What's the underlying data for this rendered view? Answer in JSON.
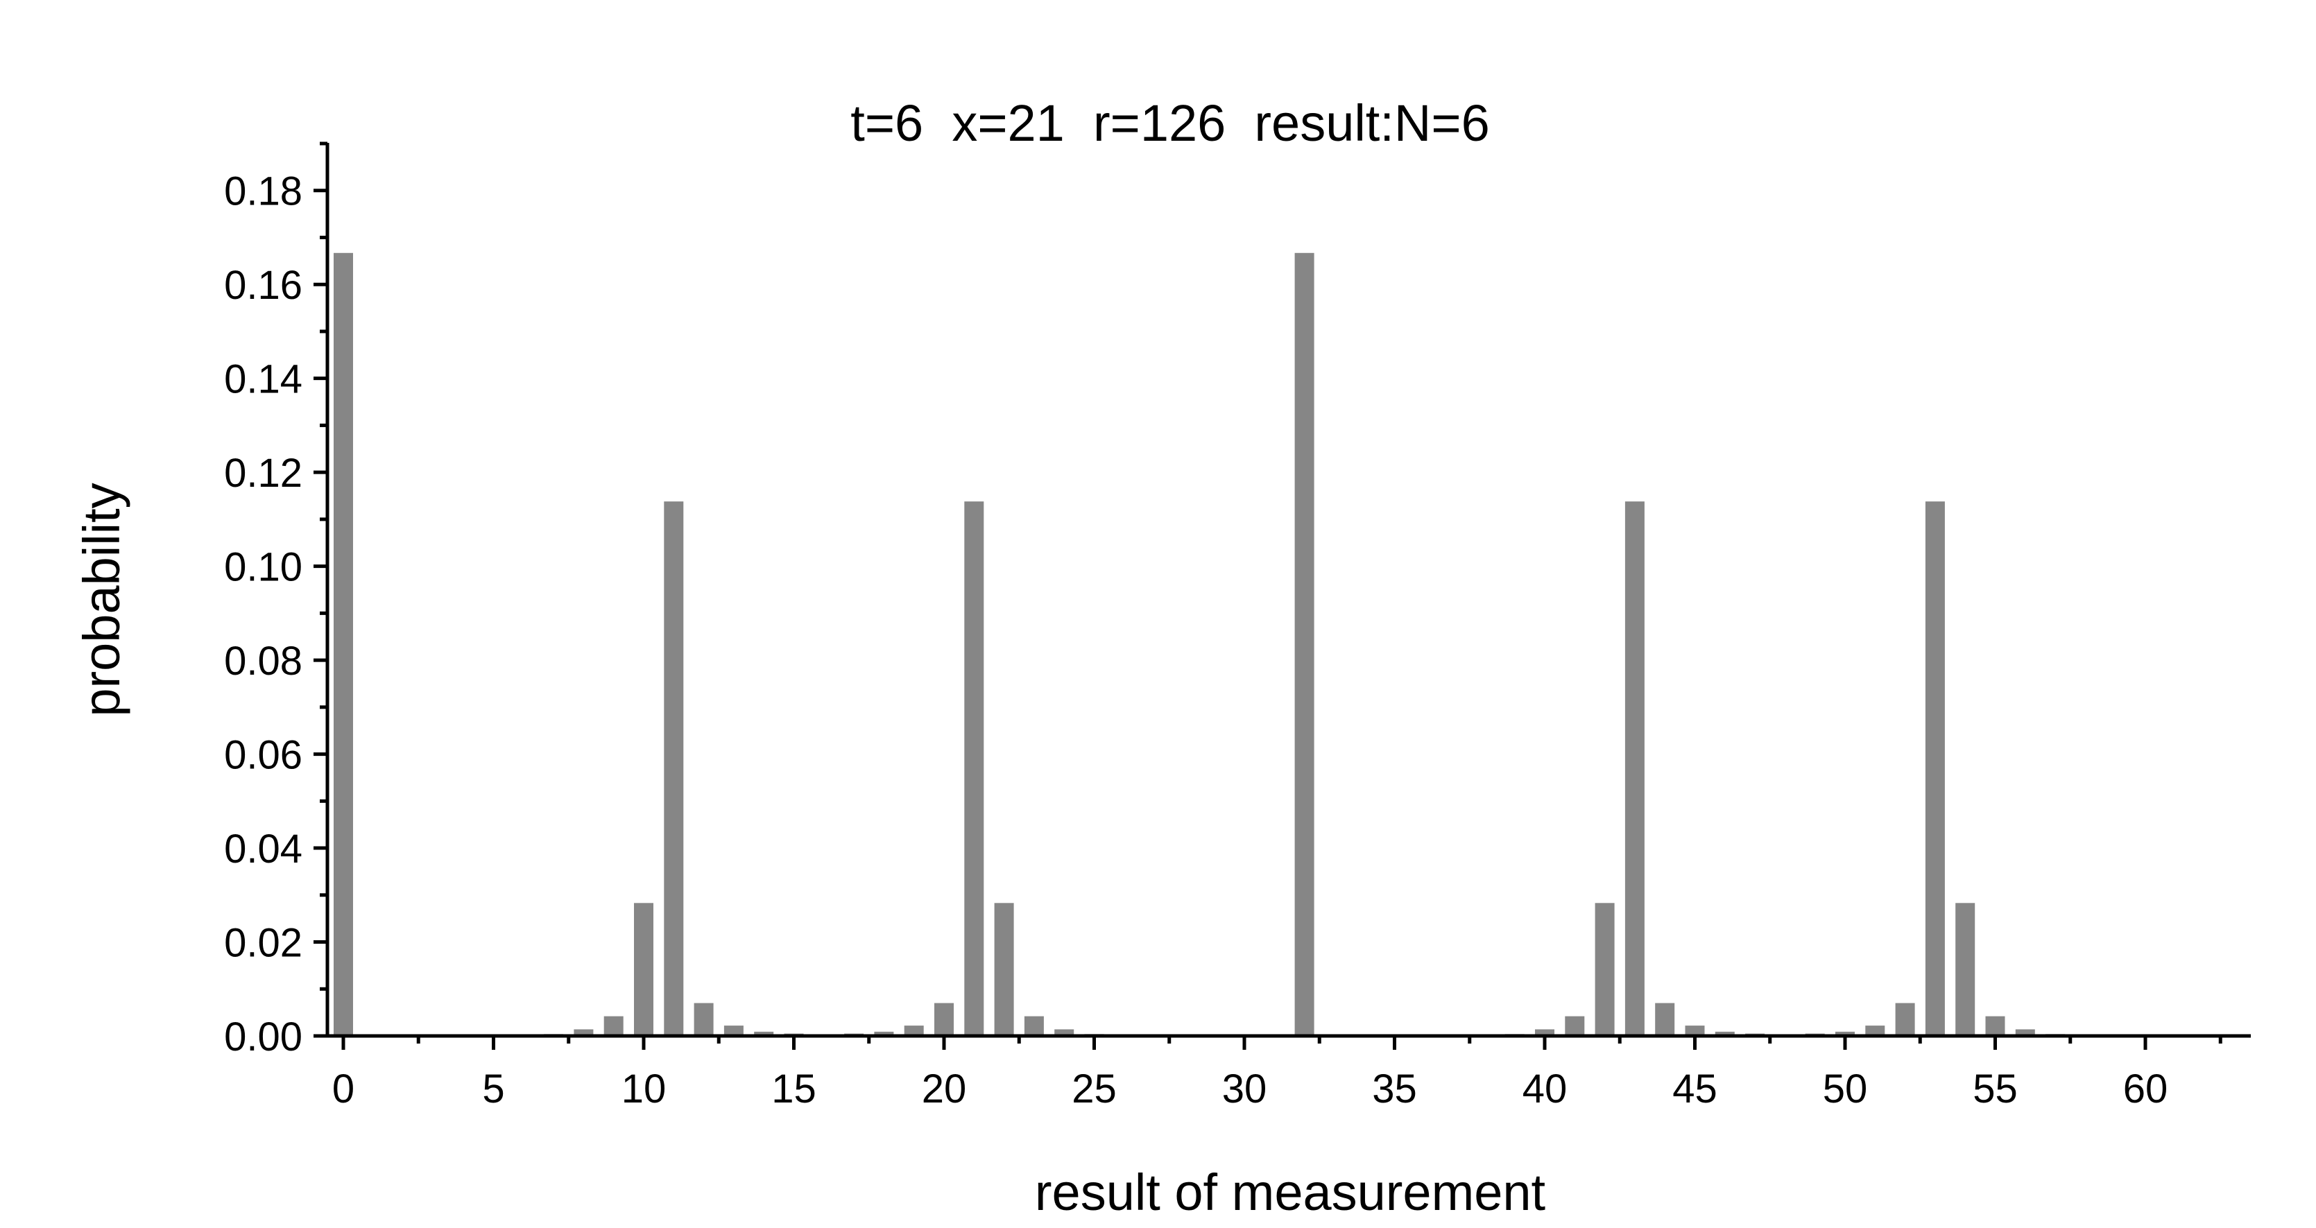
{
  "chart_data": {
    "type": "bar",
    "title": "t=6  x=21  r=126  result:N=6",
    "xlabel": "result of measurement",
    "ylabel": "probability",
    "xlim": [
      -1,
      63
    ],
    "ylim": [
      0,
      0.19
    ],
    "xticks": [
      "0",
      "5",
      "10",
      "15",
      "20",
      "25",
      "30",
      "35",
      "40",
      "45",
      "50",
      "55",
      "60"
    ],
    "yticks": [
      "0.00",
      "0.02",
      "0.04",
      "0.06",
      "0.08",
      "0.10",
      "0.12",
      "0.14",
      "0.16",
      "0.18"
    ],
    "grid": false,
    "bar_color": "#868686",
    "x": [
      0,
      1,
      2,
      3,
      4,
      5,
      6,
      7,
      8,
      9,
      10,
      11,
      12,
      13,
      14,
      15,
      16,
      17,
      18,
      19,
      20,
      21,
      22,
      23,
      24,
      25,
      26,
      27,
      28,
      29,
      30,
      31,
      32,
      33,
      34,
      35,
      36,
      37,
      38,
      39,
      40,
      41,
      42,
      43,
      44,
      45,
      46,
      47,
      48,
      49,
      50,
      51,
      52,
      53,
      54,
      55,
      56,
      57,
      58,
      59,
      60,
      61,
      62,
      63
    ],
    "values": [
      0.1667,
      0,
      0,
      0,
      0,
      0,
      0,
      0.0004,
      0.0014,
      0.0042,
      0.0283,
      0.1138,
      0.007,
      0.0022,
      0.0009,
      0.0005,
      0.0003,
      0.0005,
      0.0009,
      0.0022,
      0.007,
      0.1138,
      0.0283,
      0.0042,
      0.0014,
      0.0004,
      0,
      0,
      0,
      0,
      0,
      0,
      0.1667,
      0,
      0,
      0,
      0,
      0,
      0,
      0.0004,
      0.0014,
      0.0042,
      0.0283,
      0.1138,
      0.007,
      0.0022,
      0.0009,
      0.0005,
      0.0003,
      0.0005,
      0.0009,
      0.0022,
      0.007,
      0.1138,
      0.0283,
      0.0042,
      0.0014,
      0.0004,
      0,
      0,
      0,
      0,
      0,
      0
    ]
  }
}
